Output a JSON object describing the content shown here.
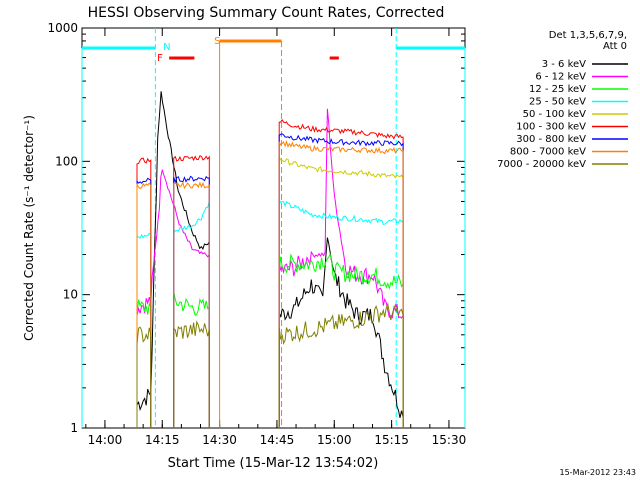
{
  "chart_data": {
    "type": "line",
    "title": "HESSI Observing Summary Count Rates, Corrected",
    "xlabel": "Start Time (15-Mar-12 13:54:02)",
    "ylabel": "Corrected Count Rate (s⁻¹ detector⁻¹)",
    "y_scale": "log",
    "ylim": [
      1,
      1000
    ],
    "xlim_minutes": [
      13.9,
      15.57
    ],
    "x_ticks": [
      {
        "hour": 14.0,
        "label": "14:00"
      },
      {
        "hour": 14.25,
        "label": "14:15"
      },
      {
        "hour": 14.5,
        "label": "14:30"
      },
      {
        "hour": 14.75,
        "label": "14:45"
      },
      {
        "hour": 15.0,
        "label": "15:00"
      },
      {
        "hour": 15.25,
        "label": "15:15"
      },
      {
        "hour": 15.5,
        "label": "15:30"
      }
    ],
    "y_ticks": [
      {
        "value": 1,
        "label": "1"
      },
      {
        "value": 10,
        "label": "10"
      },
      {
        "value": 100,
        "label": "100"
      },
      {
        "value": 1000,
        "label": "1000"
      }
    ],
    "legend_header": [
      "Det 1,3,5,6,7,9,",
      "Att 0"
    ],
    "series": [
      {
        "name": "3 - 6 keV",
        "color": "#000000",
        "points": [
          [
            14.14,
            1.5
          ],
          [
            14.2,
            1.8
          ],
          [
            14.23,
            150
          ],
          [
            14.245,
            330
          ],
          [
            14.27,
            180
          ],
          [
            14.32,
            60
          ],
          [
            14.38,
            30
          ],
          [
            14.42,
            22
          ],
          [
            14.455,
            25
          ],
          [
            14.76,
            7
          ],
          [
            14.83,
            8
          ],
          [
            14.9,
            12
          ],
          [
            14.95,
            9
          ],
          [
            14.97,
            28
          ],
          [
            15.0,
            14
          ],
          [
            15.05,
            9
          ],
          [
            15.1,
            7
          ],
          [
            15.17,
            7
          ],
          [
            15.22,
            3
          ],
          [
            15.3,
            1.2
          ]
        ]
      },
      {
        "name": "6 - 12 keV",
        "color": "#ff00ff",
        "points": [
          [
            14.14,
            8
          ],
          [
            14.2,
            9
          ],
          [
            14.25,
            90
          ],
          [
            14.28,
            60
          ],
          [
            14.33,
            32
          ],
          [
            14.38,
            22
          ],
          [
            14.42,
            20
          ],
          [
            14.455,
            20
          ],
          [
            14.76,
            15
          ],
          [
            14.83,
            16
          ],
          [
            14.9,
            20
          ],
          [
            14.96,
            20
          ],
          [
            14.97,
            250
          ],
          [
            15.0,
            55
          ],
          [
            15.05,
            16
          ],
          [
            15.1,
            14
          ],
          [
            15.17,
            14
          ],
          [
            15.22,
            8
          ],
          [
            15.3,
            7
          ]
        ]
      },
      {
        "name": "12 - 25 keV",
        "color": "#00ff00",
        "points": [
          [
            14.14,
            8
          ],
          [
            14.2,
            8
          ],
          [
            14.3,
            9
          ],
          [
            14.38,
            8
          ],
          [
            14.455,
            8
          ],
          [
            14.76,
            17
          ],
          [
            14.83,
            17
          ],
          [
            14.9,
            17
          ],
          [
            14.97,
            19
          ],
          [
            15.0,
            15
          ],
          [
            15.1,
            14
          ],
          [
            15.17,
            14
          ],
          [
            15.22,
            13
          ],
          [
            15.3,
            12
          ]
        ]
      },
      {
        "name": "25 - 50 keV",
        "color": "#00ffff",
        "points": [
          [
            14.14,
            27
          ],
          [
            14.2,
            28
          ],
          [
            14.3,
            30
          ],
          [
            14.38,
            33
          ],
          [
            14.42,
            38
          ],
          [
            14.455,
            50
          ],
          [
            14.76,
            50
          ],
          [
            14.83,
            45
          ],
          [
            14.9,
            40
          ],
          [
            15.0,
            38
          ],
          [
            15.1,
            37
          ],
          [
            15.17,
            36
          ],
          [
            15.22,
            35
          ],
          [
            15.3,
            36
          ]
        ]
      },
      {
        "name": "50 - 100 keV",
        "color": "#cccc00",
        "points": [
          [
            14.76,
            105
          ],
          [
            14.83,
            95
          ],
          [
            14.9,
            88
          ],
          [
            15.0,
            85
          ],
          [
            15.1,
            82
          ],
          [
            15.17,
            80
          ],
          [
            15.22,
            78
          ],
          [
            15.3,
            75
          ]
        ]
      },
      {
        "name": "100 - 300 keV",
        "color": "#ff0000",
        "points": [
          [
            14.14,
            100
          ],
          [
            14.2,
            102
          ],
          [
            14.3,
            104
          ],
          [
            14.38,
            106
          ],
          [
            14.455,
            108
          ],
          [
            14.76,
            200
          ],
          [
            14.83,
            185
          ],
          [
            14.9,
            175
          ],
          [
            15.0,
            170
          ],
          [
            15.1,
            165
          ],
          [
            15.17,
            160
          ],
          [
            15.22,
            155
          ],
          [
            15.3,
            152
          ]
        ]
      },
      {
        "name": "300 - 800 keV",
        "color": "#0000ff",
        "points": [
          [
            14.14,
            70
          ],
          [
            14.2,
            72
          ],
          [
            14.3,
            73
          ],
          [
            14.38,
            74
          ],
          [
            14.455,
            75
          ],
          [
            14.76,
            160
          ],
          [
            14.83,
            150
          ],
          [
            14.9,
            145
          ],
          [
            15.0,
            140
          ],
          [
            15.1,
            138
          ],
          [
            15.17,
            137
          ],
          [
            15.22,
            137
          ],
          [
            15.3,
            136
          ]
        ]
      },
      {
        "name": "800 - 7000 keV",
        "color": "#ff8000",
        "points": [
          [
            14.14,
            65
          ],
          [
            14.2,
            66
          ],
          [
            14.3,
            66
          ],
          [
            14.38,
            66
          ],
          [
            14.455,
            66
          ],
          [
            14.76,
            140
          ],
          [
            14.83,
            130
          ],
          [
            14.9,
            125
          ],
          [
            15.0,
            123
          ],
          [
            15.1,
            122
          ],
          [
            15.17,
            121
          ],
          [
            15.22,
            120
          ],
          [
            15.3,
            120
          ]
        ]
      },
      {
        "name": "7000 - 20000 keV",
        "color": "#808000",
        "points": [
          [
            14.14,
            5
          ],
          [
            14.2,
            5
          ],
          [
            14.3,
            5.2
          ],
          [
            14.38,
            5.4
          ],
          [
            14.455,
            5.5
          ],
          [
            14.76,
            5
          ],
          [
            14.83,
            5.2
          ],
          [
            14.9,
            5.5
          ],
          [
            15.0,
            6
          ],
          [
            15.1,
            6.5
          ],
          [
            15.17,
            7
          ],
          [
            15.22,
            7.5
          ],
          [
            15.3,
            7
          ]
        ]
      }
    ],
    "annotations": {
      "night_segments": [
        [
          13.9,
          14.22
        ],
        [
          15.27,
          15.57
        ]
      ],
      "flag_labels": [
        {
          "text": "N",
          "color": "#00ffff",
          "hour": 14.27
        },
        {
          "text": "F",
          "color": "#ff0000",
          "hour": 14.24
        },
        {
          "text": "S",
          "color": "#ff8000",
          "hour": 14.49
        }
      ],
      "flare_bars": [
        [
          14.28,
          14.39
        ],
        [
          14.98,
          15.02
        ]
      ],
      "saa_bar": [
        14.5,
        14.77
      ]
    },
    "footer_timestamp": "15-Mar-2012 23:43",
    "grid": false,
    "legend_position": "top-right"
  }
}
